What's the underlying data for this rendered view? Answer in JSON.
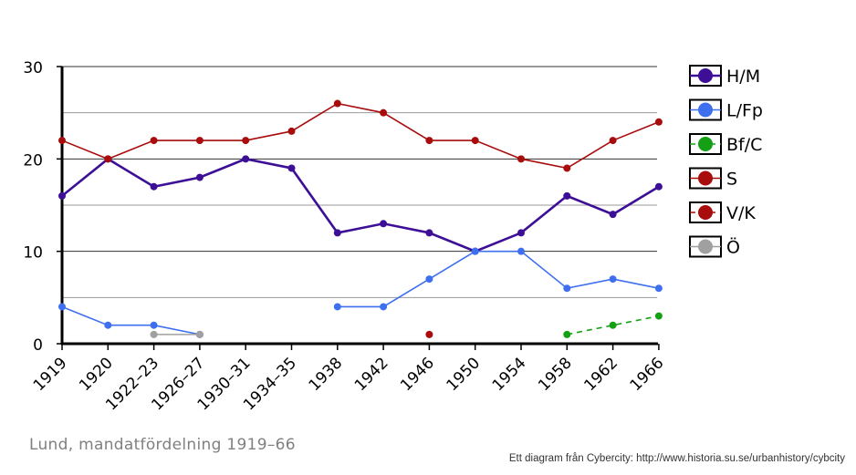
{
  "chart_data": {
    "type": "line",
    "categories": [
      "1919",
      "1920",
      "1922–23",
      "1926–27",
      "1930–31",
      "1934–35",
      "1938",
      "1942",
      "1946",
      "1950",
      "1954",
      "1958",
      "1962",
      "1966"
    ],
    "ylim": [
      0,
      30
    ],
    "yticks": [
      "0",
      "10",
      "20",
      "30"
    ],
    "grid": true,
    "legend_position": "right",
    "series": [
      {
        "name": "H/M",
        "color": "#3d0f96",
        "dashed": false,
        "strong": true,
        "values": [
          16,
          20,
          17,
          18,
          20,
          19,
          12,
          13,
          12,
          10,
          12,
          16,
          14,
          17
        ]
      },
      {
        "name": "L/Fp",
        "color": "#3d6fef",
        "dashed": false,
        "strong": false,
        "values": [
          4,
          2,
          2,
          1,
          null,
          null,
          4,
          4,
          7,
          10,
          10,
          6,
          7,
          6
        ]
      },
      {
        "name": "Bf/C",
        "color": "#14a014",
        "dashed": true,
        "strong": false,
        "values": [
          null,
          null,
          null,
          null,
          null,
          null,
          null,
          null,
          null,
          null,
          null,
          1,
          2,
          3
        ]
      },
      {
        "name": "S",
        "color": "#a80c0c",
        "dashed": false,
        "strong": false,
        "values": [
          22,
          20,
          22,
          22,
          22,
          23,
          26,
          25,
          22,
          22,
          20,
          19,
          22,
          24
        ]
      },
      {
        "name": "V/K",
        "color": "#a80c0c",
        "dashed": true,
        "strong": false,
        "values": [
          null,
          null,
          null,
          null,
          null,
          null,
          null,
          null,
          1,
          null,
          null,
          null,
          null,
          null
        ]
      },
      {
        "name": "Ö",
        "color": "#a0a0a0",
        "dashed": false,
        "strong": false,
        "values": [
          null,
          null,
          1,
          1,
          null,
          null,
          null,
          null,
          null,
          null,
          null,
          null,
          null,
          null
        ]
      }
    ]
  },
  "caption": "Lund, mandatfördelning 1919–66",
  "credit": "Ett diagram från Cybercity: http://www.historia.su.se/urbanhistory/cybcity"
}
